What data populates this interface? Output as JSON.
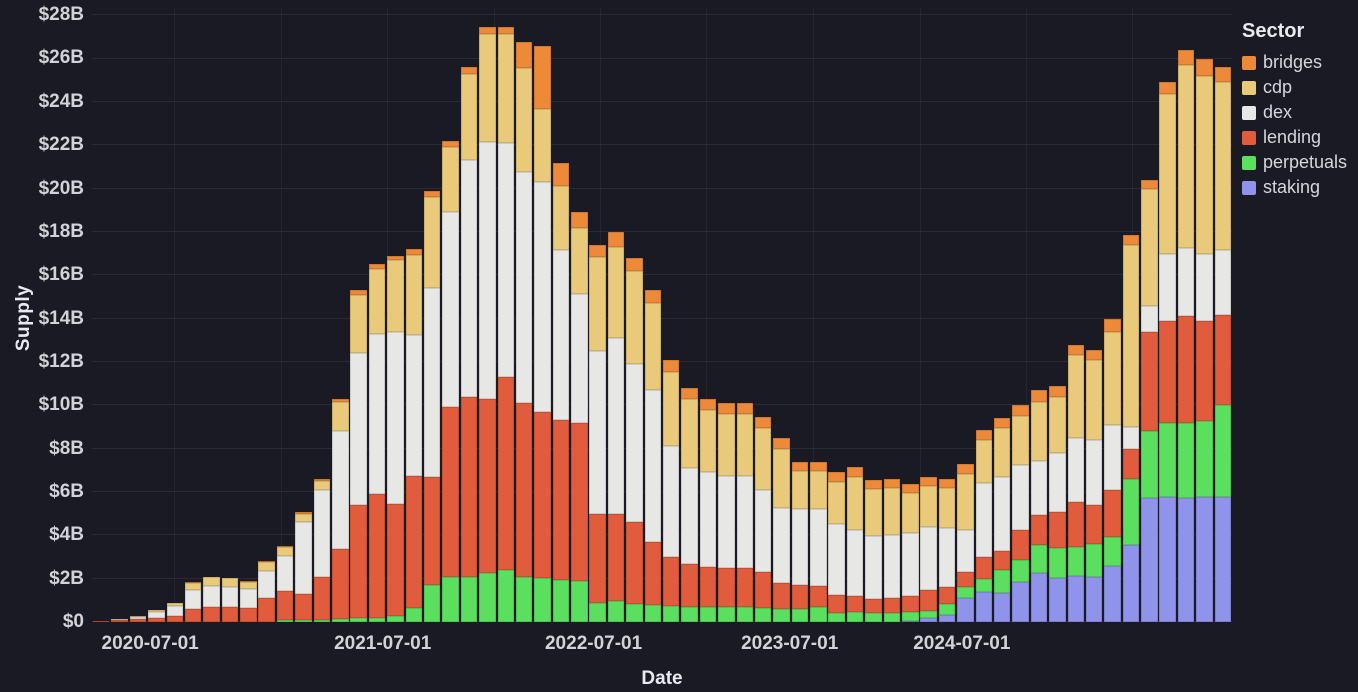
{
  "axes": {
    "y": {
      "title": "Supply",
      "tick_labels": [
        "$0",
        "$2B",
        "$4B",
        "$6B",
        "$8B",
        "$10B",
        "$12B",
        "$14B",
        "$16B",
        "$18B",
        "$20B",
        "$22B",
        "$24B",
        "$26B",
        "$28B"
      ],
      "tick_step_billions": 2,
      "max_billions": 28.33
    },
    "x": {
      "title": "Date",
      "ticks": [
        {
          "label": "2020-07-01",
          "x_pct": 5.1
        },
        {
          "label": "2021-07-01",
          "x_pct": 25.5
        },
        {
          "label": "2022-07-01",
          "x_pct": 44.0
        },
        {
          "label": "2023-07-01",
          "x_pct": 61.2
        },
        {
          "label": "2024-07-01",
          "x_pct": 76.3
        }
      ],
      "vertical_gridline_pcts": [
        7.19,
        16.54,
        25.88,
        35.22,
        44.56,
        53.9,
        63.25,
        72.59,
        81.93,
        91.27
      ]
    }
  },
  "legend": {
    "title": "Sector",
    "items": [
      {
        "label": "bridges",
        "color": "#ec8a3a"
      },
      {
        "label": "cdp",
        "color": "#e9c97a"
      },
      {
        "label": "dex",
        "color": "#e7e7e5"
      },
      {
        "label": "lending",
        "color": "#e15c3c"
      },
      {
        "label": "perpetuals",
        "color": "#5ae05e"
      },
      {
        "label": "staking",
        "color": "#8f93ea"
      }
    ]
  },
  "colors": {
    "background": "#1a1a24",
    "gridline": "#2b2b38",
    "tick_text": "#d2d3d9",
    "title_text": "#e9eaef"
  },
  "chart_data": {
    "type": "bar",
    "stacked": true,
    "title": "",
    "xlabel": "Date",
    "ylabel": "Supply",
    "value_unit": "USD billions",
    "ylim": [
      0,
      28
    ],
    "grid": true,
    "legend_position": "top-right",
    "stack_order_bottom_to_top": [
      "staking",
      "perpetuals",
      "lending",
      "dex",
      "cdp",
      "bridges"
    ],
    "x": [
      "2020-04-01",
      "2020-05-01",
      "2020-06-01",
      "2020-07-01",
      "2020-08-01",
      "2020-09-01",
      "2020-10-01",
      "2020-11-01",
      "2020-12-01",
      "2021-01-01",
      "2021-02-01",
      "2021-03-01",
      "2021-04-01",
      "2021-05-01",
      "2021-06-01",
      "2021-07-01",
      "2021-08-01",
      "2021-09-01",
      "2021-10-01",
      "2021-11-01",
      "2021-12-01",
      "2022-01-01",
      "2022-02-01",
      "2022-03-01",
      "2022-04-01",
      "2022-05-01",
      "2022-06-01",
      "2022-07-01",
      "2022-08-01",
      "2022-09-01",
      "2022-10-01",
      "2022-11-01",
      "2022-12-01",
      "2023-01-01",
      "2023-02-01",
      "2023-03-01",
      "2023-04-01",
      "2023-05-01",
      "2023-06-01",
      "2023-07-01",
      "2023-08-01",
      "2023-09-01",
      "2023-10-01",
      "2023-11-01",
      "2023-12-01",
      "2024-01-01",
      "2024-02-01",
      "2024-03-01",
      "2024-04-01",
      "2024-05-01",
      "2024-06-01",
      "2024-07-01",
      "2024-08-01",
      "2024-09-01",
      "2024-10-01",
      "2024-11-01",
      "2024-12-01",
      "2025-01-01",
      "2025-02-01",
      "2025-03-01",
      "2025-04-01",
      "2025-05-01"
    ],
    "series": [
      {
        "name": "staking",
        "color": "#8f93ea",
        "values": [
          0,
          0,
          0,
          0,
          0,
          0,
          0,
          0,
          0,
          0,
          0,
          0,
          0,
          0,
          0,
          0,
          0,
          0,
          0,
          0,
          0,
          0,
          0,
          0,
          0,
          0,
          0,
          0,
          0,
          0,
          0,
          0,
          0,
          0,
          0,
          0,
          0,
          0,
          0,
          0,
          0,
          0,
          0,
          0,
          0.05,
          0.17,
          0.32,
          1.1,
          1.4,
          1.33,
          1.85,
          2.25,
          2.03,
          2.12,
          2.1,
          2.6,
          3.55,
          5.7,
          5.77,
          5.72,
          5.78,
          5.77
        ]
      },
      {
        "name": "perpetuals",
        "color": "#5ae05e",
        "values": [
          0,
          0,
          0,
          0,
          0,
          0,
          0,
          0,
          0,
          0,
          0.08,
          0.1,
          0.1,
          0.15,
          0.2,
          0.2,
          0.3,
          0.65,
          1.7,
          2.1,
          2.1,
          2.25,
          2.4,
          2.1,
          2.05,
          1.95,
          1.9,
          0.9,
          0.95,
          0.85,
          0.8,
          0.75,
          0.7,
          0.7,
          0.7,
          0.7,
          0.65,
          0.6,
          0.6,
          0.7,
          0.4,
          0.45,
          0.4,
          0.4,
          0.4,
          0.36,
          0.53,
          0.5,
          0.6,
          1.07,
          1.0,
          1.3,
          1.37,
          1.35,
          1.5,
          1.3,
          3.05,
          3.1,
          3.43,
          3.48,
          3.5,
          4.25
        ]
      },
      {
        "name": "lending",
        "color": "#e15c3c",
        "values": [
          0.03,
          0.09,
          0.14,
          0.2,
          0.3,
          0.62,
          0.7,
          0.68,
          0.64,
          1.1,
          1.37,
          1.2,
          2.0,
          3.2,
          5.2,
          5.7,
          5.15,
          6.1,
          5.0,
          7.8,
          8.3,
          8.05,
          8.9,
          8.0,
          7.65,
          7.35,
          7.3,
          4.1,
          4.05,
          3.75,
          2.9,
          2.25,
          2.0,
          1.85,
          1.8,
          1.8,
          1.65,
          1.2,
          1.1,
          0.95,
          0.85,
          0.75,
          0.65,
          0.7,
          0.75,
          0.97,
          0.75,
          0.7,
          1.0,
          0.9,
          1.4,
          1.38,
          1.67,
          2.08,
          1.8,
          2.2,
          1.4,
          4.6,
          4.7,
          4.9,
          4.6,
          4.15
        ]
      },
      {
        "name": "dex",
        "color": "#e7e7e5",
        "values": [
          0.02,
          0.05,
          0.11,
          0.25,
          0.42,
          0.85,
          0.97,
          0.95,
          0.87,
          1.25,
          1.6,
          3.3,
          4.0,
          5.45,
          7.0,
          7.4,
          7.95,
          6.5,
          8.7,
          9.0,
          10.9,
          11.85,
          10.8,
          10.65,
          10.6,
          7.85,
          5.95,
          7.5,
          8.1,
          7.3,
          7.0,
          5.1,
          4.4,
          4.35,
          4.25,
          4.25,
          3.8,
          3.45,
          3.5,
          3.55,
          3.25,
          3.05,
          2.9,
          2.9,
          2.9,
          2.9,
          2.75,
          1.95,
          3.4,
          3.4,
          3.0,
          2.52,
          2.73,
          2.95,
          3.0,
          3.0,
          1.0,
          1.2,
          3.1,
          3.15,
          3.1,
          3.0
        ]
      },
      {
        "name": "cdp",
        "color": "#e9c97a",
        "values": [
          0,
          0.01,
          0.05,
          0.1,
          0.16,
          0.35,
          0.4,
          0.39,
          0.36,
          0.4,
          0.4,
          0.4,
          0.4,
          1.35,
          2.7,
          3.0,
          3.3,
          3.7,
          4.2,
          3.0,
          4.0,
          5.0,
          5.05,
          4.8,
          3.35,
          2.95,
          3.05,
          4.35,
          4.2,
          4.3,
          4.0,
          3.45,
          3.2,
          2.9,
          2.85,
          2.85,
          2.85,
          2.75,
          1.75,
          1.75,
          1.95,
          2.45,
          2.2,
          2.2,
          1.85,
          1.9,
          1.85,
          2.6,
          2.0,
          2.25,
          2.25,
          2.7,
          2.6,
          3.8,
          3.7,
          4.3,
          8.4,
          5.4,
          7.35,
          8.45,
          8.22,
          7.73
        ]
      },
      {
        "name": "bridges",
        "color": "#ec8a3a",
        "values": [
          0,
          0,
          0,
          0,
          0.02,
          0.03,
          0.03,
          0.03,
          0.03,
          0.05,
          0.05,
          0.1,
          0.1,
          0.15,
          0.2,
          0.2,
          0.2,
          0.25,
          0.3,
          0.3,
          0.3,
          0.3,
          0.3,
          1.2,
          2.95,
          1.1,
          0.7,
          0.55,
          0.7,
          0.6,
          0.6,
          0.55,
          0.5,
          0.5,
          0.5,
          0.5,
          0.5,
          0.5,
          0.45,
          0.45,
          0.45,
          0.45,
          0.4,
          0.4,
          0.4,
          0.4,
          0.4,
          0.45,
          0.45,
          0.45,
          0.5,
          0.55,
          0.5,
          0.5,
          0.45,
          0.6,
          0.45,
          0.4,
          0.55,
          0.7,
          0.8,
          0.7
        ]
      }
    ]
  }
}
